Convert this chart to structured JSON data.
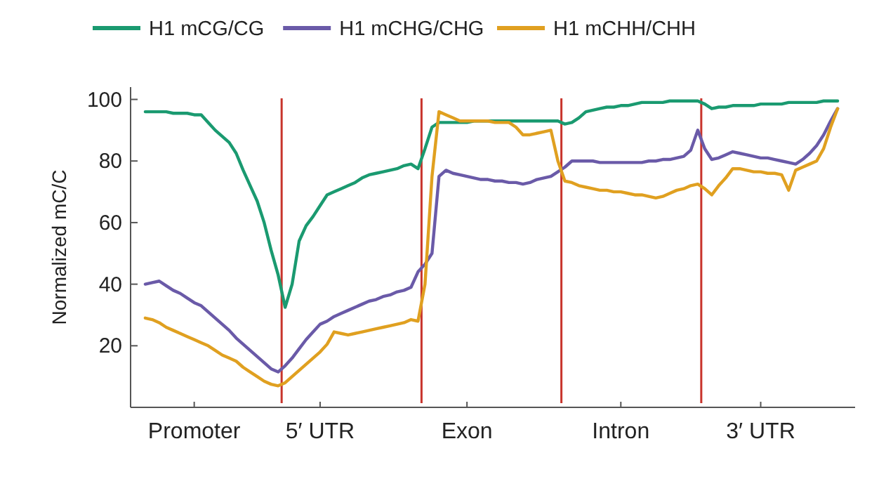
{
  "chart_data": {
    "type": "line",
    "ylabel": "Normalized mC/C",
    "legend": "top",
    "grid": false,
    "marker": "none",
    "line_style": "solid",
    "ylim": [
      0,
      104
    ],
    "yticks": [
      20,
      40,
      60,
      80,
      100
    ],
    "categories": [
      null,
      null,
      null,
      null,
      null,
      null,
      null,
      "Promoter",
      null,
      null,
      null,
      null,
      null,
      null,
      null,
      null,
      null,
      null,
      null,
      null,
      null,
      null,
      null,
      null,
      null,
      "5′ UTR",
      null,
      null,
      null,
      null,
      null,
      null,
      null,
      null,
      null,
      null,
      null,
      null,
      null,
      null,
      null,
      null,
      null,
      null,
      null,
      null,
      "Exon",
      null,
      null,
      null,
      null,
      null,
      null,
      null,
      null,
      null,
      null,
      null,
      null,
      null,
      null,
      null,
      null,
      null,
      null,
      null,
      null,
      null,
      "Intron",
      null,
      null,
      null,
      null,
      null,
      null,
      null,
      null,
      null,
      null,
      null,
      null,
      null,
      null,
      null,
      null,
      null,
      null,
      null,
      "3′ UTR",
      null,
      null,
      null,
      null,
      null,
      null,
      null,
      null,
      null,
      null,
      null
    ],
    "series": [
      {
        "name": "H1 mCG/CG",
        "color": "#1a9a70",
        "values": [
          96,
          96,
          96,
          96,
          95.5,
          95.5,
          95.5,
          95,
          95,
          92.5,
          90,
          88,
          86,
          82.5,
          77,
          72,
          67,
          60,
          51,
          43,
          32.5,
          40,
          54,
          59,
          62,
          65.5,
          69,
          70,
          71,
          72,
          73,
          74.5,
          75.5,
          76,
          76.5,
          77,
          77.5,
          78.5,
          79,
          77.5,
          84,
          91,
          92.5,
          92.5,
          92.5,
          92.5,
          92.5,
          93,
          93,
          93,
          93,
          93,
          93,
          93,
          93,
          93,
          93,
          93,
          93,
          93,
          92,
          92.5,
          94,
          96,
          96.5,
          97,
          97.5,
          97.5,
          98,
          98,
          98.5,
          99,
          99,
          99,
          99,
          99.5,
          99.5,
          99.5,
          99.5,
          99.5,
          98.5,
          97,
          97.5,
          97.5,
          98,
          98,
          98,
          98,
          98.5,
          98.5,
          98.5,
          98.5,
          99,
          99,
          99,
          99,
          99,
          99.5,
          99.5,
          99.5
        ]
      },
      {
        "name": "H1 mCHG/CHG",
        "color": "#6a5aa8",
        "values": [
          40,
          40.5,
          41,
          39.5,
          38,
          37,
          35.5,
          34,
          33,
          31,
          29,
          27,
          25,
          22.5,
          20.5,
          18.5,
          16.5,
          14.5,
          12.5,
          11.5,
          13.5,
          16,
          19,
          22,
          24.5,
          27,
          28,
          29.5,
          30.5,
          31.5,
          32.5,
          33.5,
          34.5,
          35,
          36,
          36.5,
          37.5,
          38,
          39,
          44,
          46.5,
          50,
          75,
          77,
          76,
          75.5,
          75,
          74.5,
          74,
          74,
          73.5,
          73.5,
          73,
          73,
          72.5,
          73,
          74,
          74.5,
          75,
          76.5,
          78,
          80,
          80,
          80,
          80,
          79.5,
          79.5,
          79.5,
          79.5,
          79.5,
          79.5,
          79.5,
          80,
          80,
          80.5,
          80.5,
          81,
          81.5,
          83.5,
          90,
          84,
          80.5,
          81,
          82,
          83,
          82.5,
          82,
          81.5,
          81,
          81,
          80.5,
          80,
          79.5,
          79,
          80.5,
          82.5,
          85,
          88.5,
          93,
          97
        ]
      },
      {
        "name": "H1 mCHH/CHH",
        "color": "#e0a020",
        "values": [
          29,
          28.5,
          27.5,
          26,
          25,
          24,
          23,
          22,
          21,
          20,
          18.5,
          17,
          16,
          15,
          13,
          11.5,
          10,
          8.5,
          7.5,
          7,
          8,
          10,
          12,
          14,
          16,
          18,
          20.5,
          24.5,
          24,
          23.5,
          24,
          24.5,
          25,
          25.5,
          26,
          26.5,
          27,
          27.5,
          28.5,
          28,
          40,
          75,
          96,
          95,
          94,
          93,
          93,
          93,
          93,
          93,
          92.5,
          92.5,
          92.5,
          91,
          88.5,
          88.5,
          89,
          89.5,
          90,
          80,
          73.5,
          73,
          72,
          71.5,
          71,
          70.5,
          70.5,
          70,
          70,
          69.5,
          69,
          69,
          68.5,
          68,
          68.5,
          69.5,
          70.5,
          71,
          72,
          72.5,
          71,
          69,
          72,
          74.5,
          77.5,
          77.5,
          77,
          76.5,
          76.5,
          76,
          76,
          75.5,
          70.5,
          77,
          78,
          79,
          80,
          84,
          91,
          97
        ]
      }
    ]
  }
}
